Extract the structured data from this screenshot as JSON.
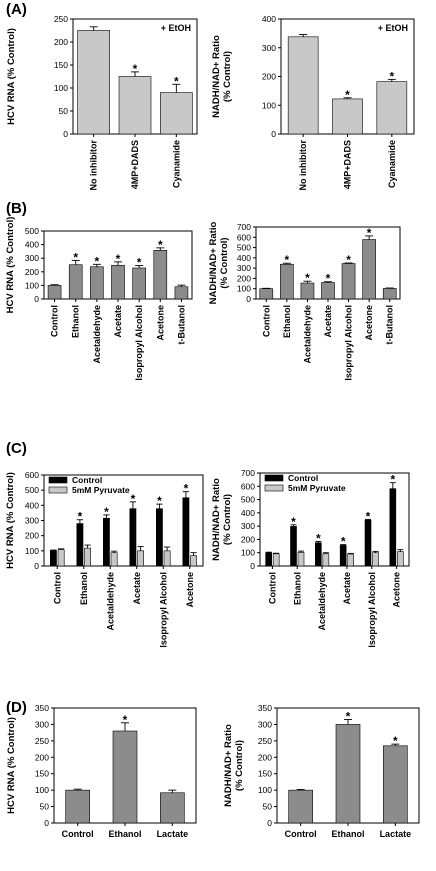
{
  "panel_labels": [
    "(A)",
    "(B)",
    "(C)",
    "(D)"
  ],
  "chart_data": [
    {
      "panel": "A",
      "type": "bar",
      "annotation": "+ EtOH",
      "ylabel": "HCV RNA (% Control)",
      "ylim": [
        0,
        250
      ],
      "yticks": [
        0,
        50,
        100,
        150,
        200,
        250
      ],
      "categories": [
        "No inhibitor",
        "4MP+DADS",
        "Cyanamide"
      ],
      "series": [
        {
          "values": [
            225,
            125,
            90
          ],
          "errors": [
            8,
            10,
            18
          ],
          "color": "#c8c8c8"
        }
      ],
      "significant": [
        false,
        true,
        true
      ],
      "grid": false
    },
    {
      "panel": "A",
      "type": "bar",
      "annotation": "+ EtOH",
      "ylabel": "NADH/NAD+ Ratio (% Control)",
      "ylim": [
        0,
        400
      ],
      "yticks": [
        0,
        100,
        200,
        300,
        400
      ],
      "categories": [
        "No inhibitor",
        "4MP+DADS",
        "Cyanamide"
      ],
      "series": [
        {
          "values": [
            338,
            122,
            182
          ],
          "errors": [
            8,
            4,
            8
          ],
          "color": "#c8c8c8"
        }
      ],
      "significant": [
        false,
        true,
        true
      ],
      "grid": false
    },
    {
      "panel": "B",
      "type": "bar",
      "ylabel": "HCV RNA (% Control)",
      "ylim": [
        0,
        500
      ],
      "yticks": [
        0,
        100,
        200,
        300,
        400,
        500
      ],
      "categories": [
        "Control",
        "Ethanol",
        "Acetaldehyde",
        "Acetate",
        "Isopropyl Alcohol",
        "Acetone",
        "t-Butanol"
      ],
      "series": [
        {
          "values": [
            100,
            252,
            237,
            248,
            228,
            358,
            90
          ],
          "errors": [
            5,
            32,
            18,
            25,
            18,
            18,
            12
          ],
          "color": "#8c8c8c"
        }
      ],
      "significant": [
        false,
        true,
        true,
        true,
        true,
        true,
        false
      ],
      "grid": false
    },
    {
      "panel": "B",
      "type": "bar",
      "ylabel": "NADH/NAD+ Ratio (% Control)",
      "ylim": [
        0,
        700
      ],
      "yticks": [
        0,
        100,
        200,
        300,
        400,
        500,
        600,
        700
      ],
      "categories": [
        "Control",
        "Ethanol",
        "Acetaldehyde",
        "Acetate",
        "Isopropyl Alcohol",
        "Acetone",
        "t-Butanol"
      ],
      "series": [
        {
          "values": [
            100,
            338,
            155,
            160,
            345,
            578,
            103
          ],
          "errors": [
            4,
            10,
            18,
            8,
            5,
            35,
            4
          ],
          "color": "#8c8c8c"
        }
      ],
      "significant": [
        false,
        true,
        true,
        true,
        true,
        true,
        false
      ],
      "grid": false
    },
    {
      "panel": "C",
      "type": "bar",
      "ylabel": "HCV RNA (% Control)",
      "ylim": [
        0,
        600
      ],
      "yticks": [
        0,
        100,
        200,
        300,
        400,
        500,
        600
      ],
      "categories": [
        "Control",
        "Ethanol",
        "Acetaldehyde",
        "Acetate",
        "Isopropyl Alcohol",
        "Acetone"
      ],
      "series": [
        {
          "name": "Control",
          "values": [
            100,
            280,
            315,
            378,
            378,
            450
          ],
          "errors": [
            5,
            25,
            22,
            45,
            30,
            40
          ],
          "color": "#000000"
        },
        {
          "name": "5mM Pyruvate",
          "values": [
            108,
            118,
            88,
            100,
            100,
            68
          ],
          "errors": [
            5,
            20,
            10,
            28,
            25,
            20
          ],
          "color": "#c8c8c8"
        }
      ],
      "significant": [
        false,
        true,
        true,
        true,
        true,
        true
      ],
      "legend": "top-left",
      "grid": false
    },
    {
      "panel": "C",
      "type": "bar",
      "ylabel": "NADH/NAD+ Ratio (% Control)",
      "ylim": [
        0,
        700
      ],
      "yticks": [
        0,
        100,
        200,
        300,
        400,
        500,
        600,
        700
      ],
      "categories": [
        "Control",
        "Ethanol",
        "Acetaldehyde",
        "Acetate",
        "Isopropyl Alcohol",
        "Acetone"
      ],
      "series": [
        {
          "name": "Control",
          "values": [
            100,
            298,
            175,
            155,
            345,
            582
          ],
          "errors": [
            4,
            12,
            10,
            6,
            6,
            45
          ],
          "color": "#000000"
        },
        {
          "name": "5mM Pyruvate",
          "values": [
            92,
            102,
            92,
            90,
            100,
            108
          ],
          "errors": [
            4,
            10,
            8,
            5,
            10,
            15
          ],
          "color": "#c8c8c8"
        }
      ],
      "significant": [
        false,
        true,
        true,
        true,
        true,
        true
      ],
      "legend": "top-left",
      "grid": false
    },
    {
      "panel": "D",
      "type": "bar",
      "ylabel": "HCV RNA (% Control)",
      "ylim": [
        0,
        350
      ],
      "yticks": [
        0,
        50,
        100,
        150,
        200,
        250,
        300,
        350
      ],
      "categories": [
        "Control",
        "Ethanol",
        "Lactate"
      ],
      "series": [
        {
          "values": [
            100,
            280,
            92
          ],
          "errors": [
            3,
            25,
            8
          ],
          "color": "#8c8c8c"
        }
      ],
      "significant": [
        false,
        true,
        false
      ],
      "grid": false
    },
    {
      "panel": "D",
      "type": "bar",
      "ylabel": "NADH/NAD+ Ratio (% Control)",
      "ylim": [
        0,
        350
      ],
      "yticks": [
        0,
        50,
        100,
        150,
        200,
        250,
        300,
        350
      ],
      "categories": [
        "Control",
        "Ethanol",
        "Lactate"
      ],
      "series": [
        {
          "values": [
            100,
            300,
            235
          ],
          "errors": [
            2,
            15,
            5
          ],
          "color": "#8c8c8c"
        }
      ],
      "significant": [
        false,
        true,
        true
      ],
      "grid": false
    }
  ]
}
